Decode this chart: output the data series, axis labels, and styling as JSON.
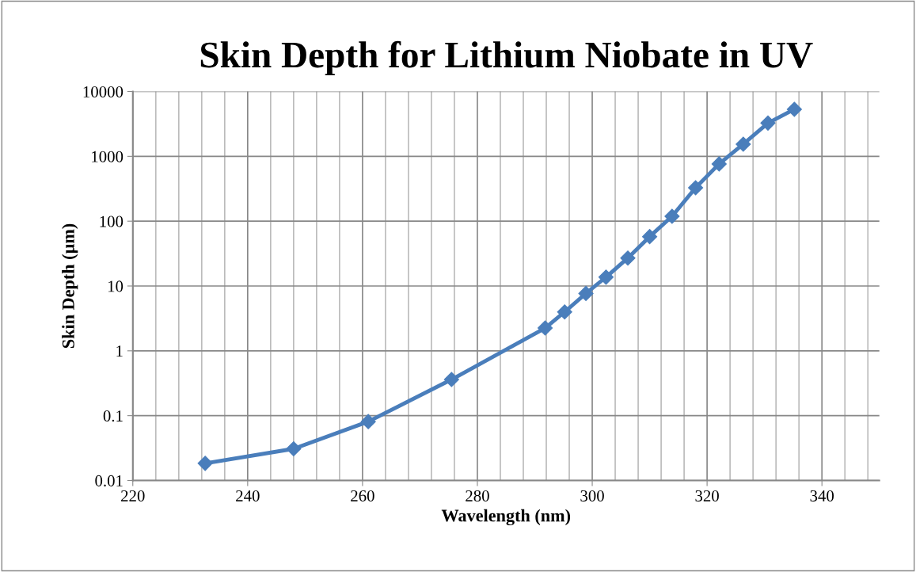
{
  "chart_data": {
    "type": "line",
    "title": "Skin Depth for Lithium Niobate in UV",
    "xlabel": "Wavelength (nm)",
    "ylabel": "Skin Depth (µm)",
    "x": [
      232.6,
      248.0,
      261.0,
      275.5,
      291.8,
      295.2,
      298.9,
      302.4,
      306.2,
      310.0,
      313.9,
      318.0,
      322.1,
      326.3,
      330.6,
      335.2
    ],
    "series": [
      {
        "color": "#4a7ebb",
        "values": [
          0.0184,
          0.0308,
          0.081,
          0.361,
          2.25,
          3.98,
          7.67,
          13.7,
          27,
          57.8,
          119,
          328,
          764,
          1542,
          3260,
          5320
        ]
      }
    ],
    "log": "y",
    "xlim": [
      220,
      350
    ],
    "xticks": [
      220,
      240,
      260,
      280,
      300,
      320,
      340
    ],
    "ylim": [
      0.01,
      10000
    ],
    "yticks": [
      0.01,
      0.1,
      1,
      10,
      100,
      1000,
      10000
    ],
    "grid": true,
    "legend": false,
    "marker": "diamond",
    "line_style": "solid"
  }
}
